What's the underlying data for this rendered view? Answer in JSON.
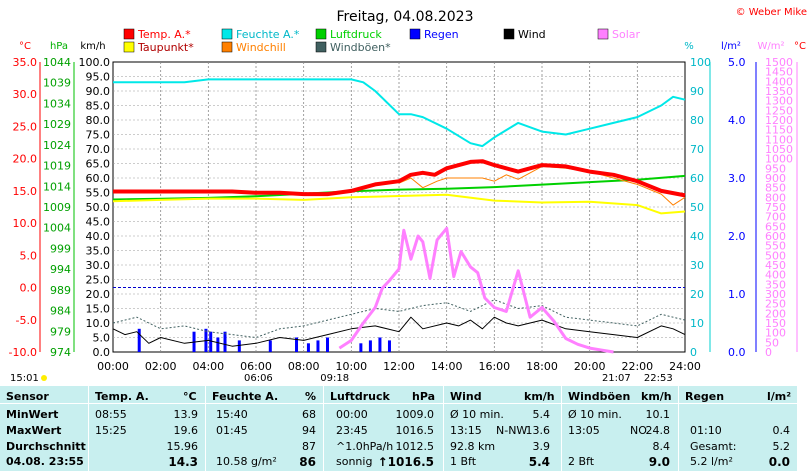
{
  "chart_data": {
    "type": "line",
    "title": "Freitag, 04.08.2023",
    "copyright": "© Weber Mike",
    "legend": [
      {
        "name": "Temp. A.*",
        "color": "#ff0000"
      },
      {
        "name": "Feuchte A.*",
        "color": "#00e8e8"
      },
      {
        "name": "Luftdruck",
        "color": "#00d000"
      },
      {
        "name": "Regen",
        "color": "#0000ff"
      },
      {
        "name": "Wind",
        "color": "#000000"
      },
      {
        "name": "Solar",
        "color": "#ff80ff"
      },
      {
        "name": "Taupunkt*",
        "color": "#ffff00"
      },
      {
        "name": "Windchill",
        "color": "#ff8000"
      },
      {
        "name": "Windböen*",
        "color": "#406060"
      }
    ],
    "axes": {
      "temp": {
        "unit": "°C",
        "ticks": [
          "35.0",
          "30.0",
          "25.0",
          "20.0",
          "15.0",
          "10.0",
          "5.0",
          "0.0",
          "-5.0",
          "-10.0"
        ],
        "ylim": [
          -10,
          35
        ]
      },
      "pressure": {
        "unit": "hPa",
        "ticks": [
          "1044",
          "1039",
          "1034",
          "1029",
          "1024",
          "1019",
          "1014",
          "1009",
          "1004",
          "999",
          "994",
          "989",
          "984",
          "979",
          "974"
        ],
        "ylim": [
          974,
          1044
        ]
      },
      "wind": {
        "unit": "km/h",
        "ticks": [
          "100.0",
          "95.0",
          "90.0",
          "85.0",
          "80.0",
          "75.0",
          "70.0",
          "65.0",
          "60.0",
          "55.0",
          "50.0",
          "45.0",
          "40.0",
          "35.0",
          "30.0",
          "25.0",
          "20.0",
          "15.0",
          "10.0",
          "5.0",
          "0.0"
        ],
        "ylim": [
          0,
          100
        ]
      },
      "humidity": {
        "unit": "%",
        "ticks": [
          "100",
          "90",
          "80",
          "70",
          "60",
          "50",
          "40",
          "30",
          "20",
          "10",
          "0"
        ],
        "ylim": [
          0,
          100
        ]
      },
      "rain": {
        "unit": "l/m²",
        "ticks": [
          "5.0",
          "4.0",
          "3.0",
          "2.0",
          "1.0",
          "0.0"
        ],
        "ylim": [
          0,
          5
        ]
      },
      "solar": {
        "unit": "W/m²",
        "ticks": [
          "1500",
          "1450",
          "1400",
          "1350",
          "1300",
          "1250",
          "1200",
          "1150",
          "1100",
          "1050",
          "1000",
          "950",
          "900",
          "850",
          "800",
          "750",
          "700",
          "650",
          "600",
          "550",
          "500",
          "450",
          "400",
          "350",
          "300",
          "250",
          "200",
          "150",
          "100",
          "50",
          "0"
        ],
        "ylim": [
          0,
          1500
        ]
      },
      "x": {
        "ticks": [
          "00:00",
          "02:00",
          "04:00",
          "06:00",
          "08:00",
          "10:00",
          "12:00",
          "14:00",
          "16:00",
          "18:00",
          "20:00",
          "22:00",
          "24:00"
        ],
        "xlim": [
          0,
          24
        ],
        "unit": "hours"
      }
    },
    "sun_labels": [
      {
        "label": "15:01",
        "hour": 0
      },
      {
        "label": "06:06",
        "hour": 6.1
      },
      {
        "label": "09:18",
        "hour": 9.3
      },
      {
        "label": "21:07",
        "hour": 21.12
      },
      {
        "label": "22:53",
        "hour": 22.88
      }
    ],
    "series": [
      {
        "name": "Temp. A.*",
        "axis": "temp",
        "color": "#ff0000",
        "x": [
          0,
          1,
          2,
          3,
          4,
          5,
          6,
          7,
          8,
          9,
          10,
          11,
          12,
          12.5,
          13,
          13.5,
          14,
          15,
          15.5,
          16,
          17,
          18,
          19,
          20,
          21,
          22,
          23,
          24
        ],
        "y": [
          14.9,
          14.9,
          14.9,
          14.9,
          14.9,
          14.9,
          14.7,
          14.7,
          14.5,
          14.5,
          15,
          16,
          16.5,
          17.5,
          17.8,
          17.5,
          18.5,
          19.5,
          19.6,
          19,
          18,
          19,
          18.8,
          18,
          17.5,
          16.5,
          15,
          14.3
        ]
      },
      {
        "name": "Feuchte A.*",
        "axis": "humidity",
        "color": "#00e8e8",
        "x": [
          0,
          1,
          2,
          3,
          4,
          5,
          6,
          7,
          8,
          9,
          10,
          10.5,
          11,
          11.5,
          12,
          12.5,
          13,
          14,
          15,
          15.5,
          16,
          17,
          18,
          19,
          20,
          21,
          22,
          23,
          23.5,
          24
        ],
        "y": [
          93,
          93,
          93,
          93,
          94,
          94,
          94,
          94,
          94,
          94,
          94,
          93,
          90,
          86,
          82,
          82,
          81,
          77,
          72,
          71,
          74,
          79,
          76,
          75,
          77,
          79,
          81,
          85,
          88,
          87
        ]
      },
      {
        "name": "Taupunkt*",
        "axis": "temp",
        "color": "#ffff00",
        "x": [
          0,
          2,
          4,
          6,
          8,
          10,
          12,
          14,
          16,
          18,
          20,
          22,
          23,
          24
        ],
        "y": [
          13.4,
          13.6,
          13.8,
          13.8,
          13.6,
          14,
          14.2,
          14.4,
          13.5,
          13.2,
          13.3,
          12.8,
          11.5,
          11.8
        ]
      },
      {
        "name": "Windchill",
        "axis": "temp",
        "color": "#ff8000",
        "x": [
          12,
          12.5,
          13,
          13.3,
          13.6,
          14,
          15.5,
          16,
          16.5,
          17,
          18,
          19,
          20,
          21,
          22,
          23,
          23.5,
          24
        ],
        "y": [
          16.2,
          17,
          15.5,
          16,
          16.5,
          17,
          17,
          16.5,
          17.5,
          16.8,
          18.8,
          18.5,
          18,
          17,
          16,
          14.5,
          12.8,
          14
        ]
      },
      {
        "name": "Luftdruck",
        "axis": "pressure",
        "color": "#00d000",
        "x": [
          0,
          2,
          4,
          6,
          8,
          10,
          12,
          14,
          16,
          18,
          20,
          22,
          24
        ],
        "y": [
          1010.8,
          1011,
          1011.2,
          1011.6,
          1012.2,
          1012.8,
          1013.2,
          1013.4,
          1013.8,
          1014.4,
          1015,
          1015.6,
          1016.5
        ]
      },
      {
        "name": "Solar",
        "axis": "solar",
        "color": "#ff80ff",
        "x": [
          9.5,
          10,
          10.5,
          11,
          11.3,
          11.6,
          12,
          12.2,
          12.5,
          12.8,
          13,
          13.3,
          13.6,
          14,
          14.3,
          14.6,
          15,
          15.3,
          15.6,
          16,
          16.5,
          17,
          17.5,
          18,
          18.5,
          19,
          19.5,
          20,
          20.5,
          21
        ],
        "y": [
          20,
          60,
          150,
          230,
          330,
          370,
          430,
          630,
          480,
          600,
          570,
          380,
          580,
          640,
          390,
          520,
          440,
          410,
          280,
          230,
          210,
          420,
          180,
          230,
          160,
          70,
          40,
          20,
          10,
          0
        ]
      },
      {
        "name": "Wind",
        "axis": "wind",
        "color": "#000000",
        "x": [
          0,
          0.5,
          1,
          1.5,
          2,
          3,
          4,
          5,
          6,
          7,
          8,
          9,
          10,
          11,
          12,
          12.5,
          13,
          14,
          14.5,
          15,
          15.5,
          16,
          16.5,
          17,
          18,
          19,
          20,
          21,
          22,
          23,
          23.5,
          24
        ],
        "y": [
          8,
          6,
          7,
          3,
          5,
          3,
          4,
          2,
          3,
          5,
          4,
          6,
          8,
          9,
          7,
          12,
          8,
          10,
          9,
          11,
          8,
          12,
          10,
          9,
          11,
          8,
          7,
          6,
          5,
          9,
          8,
          6
        ]
      },
      {
        "name": "Windböen*",
        "axis": "wind",
        "color": "#406060",
        "x": [
          0,
          1,
          2,
          3,
          4,
          5,
          6,
          7,
          8,
          9,
          10,
          11,
          12,
          13,
          14,
          15,
          16,
          17,
          18,
          19,
          20,
          21,
          22,
          23,
          24
        ],
        "y": [
          10,
          12,
          8,
          9,
          7,
          6,
          5,
          8,
          9,
          11,
          13,
          15,
          14,
          16,
          17,
          14,
          18,
          15,
          16,
          12,
          11,
          10,
          9,
          13,
          11
        ]
      },
      {
        "name": "Regen",
        "axis": "rain",
        "color": "#0000ff",
        "type": "bar",
        "x": [
          1.1,
          3.4,
          3.9,
          4.1,
          4.4,
          4.7,
          5.3,
          6.6,
          7.7,
          8.2,
          8.6,
          9,
          10.4,
          10.8,
          11.2,
          11.6
        ],
        "y": [
          0.4,
          0.35,
          0.4,
          0.35,
          0.25,
          0.35,
          0.2,
          0.2,
          0.25,
          0.15,
          0.2,
          0.25,
          0.15,
          0.2,
          0.25,
          0.2
        ]
      }
    ]
  },
  "table": {
    "headers": {
      "sensor": "Sensor",
      "temp": "Temp. A.",
      "temp_unit": "°C",
      "hum": "Feuchte A.",
      "hum_unit": "%",
      "press": "Luftdruck",
      "press_unit": "hPa",
      "wind": "Wind",
      "wind_unit": "km/h",
      "gust": "Windböen",
      "gust_unit": "km/h",
      "rain": "Regen",
      "rain_unit": "l/m²"
    },
    "rows": [
      {
        "label": "MinWert",
        "temp_time": "08:55",
        "temp_val": "13.9",
        "hum_time": "15:40",
        "hum_val": "68",
        "press_time": "00:00",
        "press_val": "1009.0",
        "wind_a": "Ø 10 min.",
        "wind_b": "",
        "wind_val": "5.4",
        "gust_a": "Ø 10 min.",
        "gust_b": "",
        "gust_val": "10.1",
        "rain_a": "",
        "rain_val": ""
      },
      {
        "label": "MaxWert",
        "temp_time": "15:25",
        "temp_val": "19.6",
        "hum_time": "01:45",
        "hum_val": "94",
        "press_time": "23:45",
        "press_val": "1016.5",
        "wind_a": "13:15",
        "wind_b": "N-NW",
        "wind_val": "13.6",
        "gust_a": "13:05",
        "gust_b": "NO",
        "gust_val": "24.8",
        "rain_a": "01:10",
        "rain_val": "0.4"
      },
      {
        "label": "Durchschnitt",
        "temp_time": "",
        "temp_val": "15.96",
        "hum_time": "",
        "hum_val": "87",
        "press_time": "^1.0hPa/h",
        "press_val": "1012.5",
        "wind_a": "92.8 km",
        "wind_b": "",
        "wind_val": "3.9",
        "gust_a": "",
        "gust_b": "",
        "gust_val": "8.4",
        "rain_a": "Gesamt:",
        "rain_val": "5.2"
      },
      {
        "label": "04.08. 23:55",
        "temp_time": "",
        "temp_val": "14.3",
        "hum_time": "10.58 g/m²",
        "hum_val": "86",
        "press_time": "sonnig",
        "press_val": "↑1016.5",
        "wind_a": "1 Bft",
        "wind_b": "",
        "wind_val": "5.4",
        "gust_a": "2 Bft",
        "gust_b": "",
        "gust_val": "9.0",
        "rain_a": "5.2 l/m²",
        "rain_val": "0.0"
      }
    ]
  }
}
